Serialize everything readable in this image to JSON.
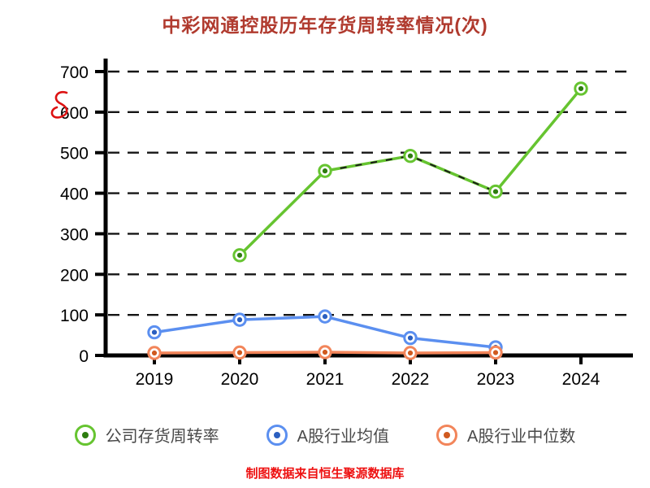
{
  "page": {
    "background": "#ffffff"
  },
  "chart_data": {
    "type": "line",
    "title": "中彩网通控股历年存货周转率情况(次)",
    "title_color": "#b03a2e",
    "footer": "制图数据来自恒生聚源数据库",
    "footer_color": "#ee1111",
    "x_categories": [
      "2019",
      "2020",
      "2021",
      "2022",
      "2023",
      "2024"
    ],
    "ylim": [
      0,
      700
    ],
    "yticks": [
      0,
      100,
      200,
      300,
      400,
      500,
      600,
      700
    ],
    "grid": "horizontal-dashed",
    "legend_position": "bottom",
    "axis_color": "#000000",
    "series": [
      {
        "name": "公司存货周转率",
        "color": "#66c430",
        "color_dark": "#2e7d0f",
        "points": [
          {
            "x": "2020",
            "y": 247
          },
          {
            "x": "2021",
            "y": 455
          },
          {
            "x": "2022",
            "y": 492
          },
          {
            "x": "2023",
            "y": 404
          },
          {
            "x": "2024",
            "y": 658
          }
        ]
      },
      {
        "name": "A股行业均值",
        "color": "#5b8ff0",
        "color_dark": "#2b5fc0",
        "points": [
          {
            "x": "2019",
            "y": 57
          },
          {
            "x": "2020",
            "y": 88
          },
          {
            "x": "2021",
            "y": 96
          },
          {
            "x": "2022",
            "y": 43
          },
          {
            "x": "2023",
            "y": 20
          }
        ]
      },
      {
        "name": "A股行业中位数",
        "color": "#f2855a",
        "color_dark": "#d05a20",
        "points": [
          {
            "x": "2019",
            "y": 6
          },
          {
            "x": "2020",
            "y": 7
          },
          {
            "x": "2021",
            "y": 8
          },
          {
            "x": "2022",
            "y": 6
          },
          {
            "x": "2023",
            "y": 7
          }
        ]
      }
    ],
    "annotations": {
      "scribble": {
        "description": "handwritten red mark near 600 on y-axis",
        "color": "#dd1111"
      },
      "dashed_overlay": {
        "series": 0,
        "from": "2021",
        "to": "2023",
        "color": "#1a1a1a"
      }
    }
  }
}
